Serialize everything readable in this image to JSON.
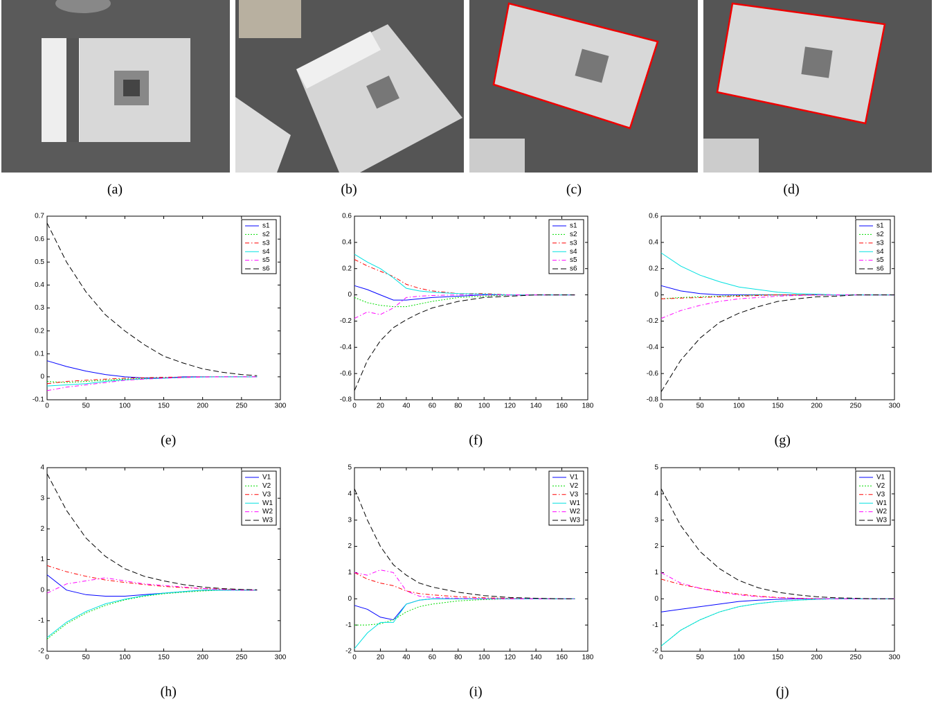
{
  "images": [
    {
      "caption": "(a)"
    },
    {
      "caption": "(b)"
    },
    {
      "caption": "(c)"
    },
    {
      "caption": "(d)"
    }
  ],
  "chart_data": [
    {
      "type": "line",
      "caption": "(e)",
      "xlim": [
        0,
        300
      ],
      "xticks": [
        0,
        50,
        100,
        150,
        200,
        250,
        300
      ],
      "ylim": [
        -0.1,
        0.7
      ],
      "yticks": [
        -0.1,
        0,
        0.1,
        0.2,
        0.3,
        0.4,
        0.5,
        0.6,
        0.7
      ],
      "legend": "upper right",
      "x": [
        0,
        25,
        50,
        75,
        100,
        125,
        150,
        175,
        200,
        225,
        250,
        270
      ],
      "series": [
        {
          "name": "s1",
          "color": "#0000ff",
          "dash": "solid",
          "values": [
            0.07,
            0.045,
            0.025,
            0.01,
            0,
            -0.005,
            -0.005,
            0,
            0,
            0,
            0,
            0
          ]
        },
        {
          "name": "s2",
          "color": "#00dd00",
          "dash": "dotted",
          "values": [
            -0.02,
            -0.025,
            -0.02,
            -0.015,
            -0.01,
            -0.007,
            -0.005,
            -0.003,
            0,
            0,
            0,
            0
          ]
        },
        {
          "name": "s3",
          "color": "#ff0000",
          "dash": "dashdot",
          "values": [
            -0.03,
            -0.02,
            -0.015,
            -0.01,
            -0.006,
            -0.004,
            -0.002,
            -0.001,
            0,
            0,
            0,
            0
          ]
        },
        {
          "name": "s4",
          "color": "#00e0e0",
          "dash": "solid",
          "values": [
            -0.04,
            -0.035,
            -0.03,
            -0.02,
            -0.013,
            -0.009,
            -0.006,
            -0.003,
            -0.001,
            0,
            0,
            0
          ]
        },
        {
          "name": "s5",
          "color": "#ff00ff",
          "dash": "dashdot",
          "values": [
            -0.06,
            -0.045,
            -0.035,
            -0.025,
            -0.015,
            -0.01,
            -0.006,
            -0.003,
            -0.001,
            0,
            0,
            0
          ]
        },
        {
          "name": "s6",
          "color": "#000000",
          "dash": "dashed",
          "values": [
            0.67,
            0.5,
            0.37,
            0.27,
            0.2,
            0.14,
            0.09,
            0.06,
            0.035,
            0.02,
            0.01,
            0.005
          ]
        }
      ]
    },
    {
      "type": "line",
      "caption": "(f)",
      "xlim": [
        0,
        180
      ],
      "xticks": [
        0,
        20,
        40,
        60,
        80,
        100,
        120,
        140,
        160,
        180
      ],
      "ylim": [
        -0.8,
        0.6
      ],
      "yticks": [
        -0.8,
        -0.6,
        -0.4,
        -0.2,
        0,
        0.2,
        0.4,
        0.6
      ],
      "legend": "upper right",
      "x": [
        0,
        10,
        20,
        30,
        40,
        50,
        60,
        80,
        100,
        120,
        140,
        160,
        170
      ],
      "series": [
        {
          "name": "s1",
          "color": "#0000ff",
          "dash": "solid",
          "values": [
            0.07,
            0.04,
            0,
            -0.04,
            -0.04,
            -0.03,
            -0.02,
            -0.01,
            0,
            0,
            0,
            0,
            0
          ]
        },
        {
          "name": "s2",
          "color": "#00dd00",
          "dash": "dotted",
          "values": [
            -0.02,
            -0.06,
            -0.08,
            -0.09,
            -0.09,
            -0.07,
            -0.05,
            -0.02,
            -0.01,
            0,
            0,
            0,
            0
          ]
        },
        {
          "name": "s3",
          "color": "#ff0000",
          "dash": "dashdot",
          "values": [
            0.27,
            0.22,
            0.18,
            0.14,
            0.08,
            0.05,
            0.03,
            0.01,
            0.01,
            0,
            0,
            0,
            0
          ]
        },
        {
          "name": "s4",
          "color": "#00e0e0",
          "dash": "solid",
          "values": [
            0.31,
            0.25,
            0.2,
            0.13,
            0.05,
            0.03,
            0.02,
            0.01,
            0.005,
            0,
            0,
            0,
            0
          ]
        },
        {
          "name": "s5",
          "color": "#ff00ff",
          "dash": "dashdot",
          "values": [
            -0.18,
            -0.13,
            -0.15,
            -0.1,
            -0.02,
            -0.01,
            -0.005,
            0,
            0,
            0,
            0,
            0,
            0
          ]
        },
        {
          "name": "s6",
          "color": "#000000",
          "dash": "dashed",
          "values": [
            -0.73,
            -0.5,
            -0.35,
            -0.25,
            -0.19,
            -0.14,
            -0.1,
            -0.05,
            -0.02,
            -0.01,
            0,
            0,
            0
          ]
        }
      ]
    },
    {
      "type": "line",
      "caption": "(g)",
      "xlim": [
        0,
        300
      ],
      "xticks": [
        0,
        50,
        100,
        150,
        200,
        250,
        300
      ],
      "ylim": [
        -0.8,
        0.6
      ],
      "yticks": [
        -0.8,
        -0.6,
        -0.4,
        -0.2,
        0,
        0.2,
        0.4,
        0.6
      ],
      "legend": "upper right",
      "x": [
        0,
        25,
        50,
        75,
        100,
        125,
        150,
        175,
        200,
        225,
        250,
        275,
        300
      ],
      "series": [
        {
          "name": "s1",
          "color": "#0000ff",
          "dash": "solid",
          "values": [
            0.07,
            0.03,
            0.01,
            0,
            0,
            0,
            0,
            0,
            0,
            0,
            0,
            0,
            0
          ]
        },
        {
          "name": "s2",
          "color": "#00dd00",
          "dash": "dotted",
          "values": [
            -0.03,
            -0.02,
            -0.015,
            -0.01,
            -0.005,
            0,
            0,
            0,
            0,
            0,
            0,
            0,
            0
          ]
        },
        {
          "name": "s3",
          "color": "#ff0000",
          "dash": "dashdot",
          "values": [
            -0.03,
            -0.025,
            -0.02,
            -0.015,
            -0.01,
            -0.005,
            0,
            0,
            0,
            0,
            0,
            0,
            0
          ]
        },
        {
          "name": "s4",
          "color": "#00e0e0",
          "dash": "solid",
          "values": [
            0.32,
            0.22,
            0.15,
            0.1,
            0.06,
            0.04,
            0.02,
            0.01,
            0.005,
            0,
            0,
            0,
            0
          ]
        },
        {
          "name": "s5",
          "color": "#ff00ff",
          "dash": "dashdot",
          "values": [
            -0.18,
            -0.12,
            -0.08,
            -0.05,
            -0.03,
            -0.02,
            -0.01,
            -0.005,
            0,
            0,
            0,
            0,
            0
          ]
        },
        {
          "name": "s6",
          "color": "#000000",
          "dash": "dashed",
          "values": [
            -0.74,
            -0.5,
            -0.33,
            -0.21,
            -0.14,
            -0.09,
            -0.05,
            -0.03,
            -0.015,
            -0.01,
            0,
            0,
            0
          ]
        }
      ]
    },
    {
      "type": "line",
      "caption": "(h)",
      "xlim": [
        0,
        300
      ],
      "xticks": [
        0,
        50,
        100,
        150,
        200,
        250,
        300
      ],
      "ylim": [
        -2,
        4
      ],
      "yticks": [
        -2,
        -1,
        0,
        1,
        2,
        3,
        4
      ],
      "legend": "upper right",
      "x": [
        0,
        25,
        50,
        75,
        100,
        125,
        150,
        175,
        200,
        225,
        250,
        270
      ],
      "series": [
        {
          "name": "V1",
          "color": "#0000ff",
          "dash": "solid",
          "values": [
            0.5,
            0,
            -0.15,
            -0.2,
            -0.2,
            -0.15,
            -0.1,
            -0.05,
            0,
            0,
            0,
            0
          ]
        },
        {
          "name": "V2",
          "color": "#00dd00",
          "dash": "dotted",
          "values": [
            -1.6,
            -1.1,
            -0.75,
            -0.5,
            -0.32,
            -0.2,
            -0.12,
            -0.07,
            -0.03,
            0,
            0,
            0
          ]
        },
        {
          "name": "V3",
          "color": "#ff0000",
          "dash": "dashdot",
          "values": [
            0.8,
            0.6,
            0.45,
            0.33,
            0.25,
            0.18,
            0.12,
            0.08,
            0.05,
            0.03,
            0.01,
            0
          ]
        },
        {
          "name": "W1",
          "color": "#00e0e0",
          "dash": "solid",
          "values": [
            -1.55,
            -1.05,
            -0.7,
            -0.45,
            -0.3,
            -0.18,
            -0.1,
            -0.05,
            0,
            0,
            0,
            0
          ]
        },
        {
          "name": "W2",
          "color": "#ff00ff",
          "dash": "dashdot",
          "values": [
            -0.1,
            0.2,
            0.3,
            0.4,
            0.3,
            0.2,
            0.15,
            0.1,
            0.05,
            0.02,
            0,
            0
          ]
        },
        {
          "name": "W3",
          "color": "#000000",
          "dash": "dashed",
          "values": [
            3.8,
            2.6,
            1.7,
            1.1,
            0.7,
            0.45,
            0.3,
            0.18,
            0.1,
            0.05,
            0.02,
            0.01
          ]
        }
      ]
    },
    {
      "type": "line",
      "caption": "(i)",
      "xlim": [
        0,
        180
      ],
      "xticks": [
        0,
        20,
        40,
        60,
        80,
        100,
        120,
        140,
        160,
        180
      ],
      "ylim": [
        -2,
        5
      ],
      "yticks": [
        -2,
        -1,
        0,
        1,
        2,
        3,
        4,
        5
      ],
      "legend": "upper right",
      "x": [
        0,
        10,
        20,
        30,
        40,
        50,
        60,
        80,
        100,
        120,
        140,
        160,
        170
      ],
      "series": [
        {
          "name": "V1",
          "color": "#0000ff",
          "dash": "solid",
          "values": [
            -0.25,
            -0.4,
            -0.7,
            -0.8,
            -0.2,
            -0.05,
            0,
            0,
            0,
            0,
            0,
            0,
            0
          ]
        },
        {
          "name": "V2",
          "color": "#00dd00",
          "dash": "dotted",
          "values": [
            -1,
            -1,
            -0.95,
            -0.8,
            -0.5,
            -0.3,
            -0.2,
            -0.08,
            -0.03,
            0,
            0,
            0,
            0
          ]
        },
        {
          "name": "V3",
          "color": "#ff0000",
          "dash": "dashdot",
          "values": [
            1,
            0.75,
            0.6,
            0.5,
            0.3,
            0.2,
            0.15,
            0.08,
            0.04,
            0.02,
            0,
            0,
            0
          ]
        },
        {
          "name": "W1",
          "color": "#00e0e0",
          "dash": "solid",
          "values": [
            -1.9,
            -1.3,
            -0.9,
            -0.9,
            -0.2,
            -0.05,
            0,
            0,
            0,
            0,
            0,
            0,
            0
          ]
        },
        {
          "name": "W2",
          "color": "#ff00ff",
          "dash": "dashdot",
          "values": [
            1,
            0.9,
            1.1,
            1,
            0.3,
            0.1,
            0.05,
            0.02,
            0,
            0,
            0,
            0,
            0
          ]
        },
        {
          "name": "W3",
          "color": "#000000",
          "dash": "dashed",
          "values": [
            4.2,
            3,
            2,
            1.3,
            0.9,
            0.6,
            0.45,
            0.25,
            0.12,
            0.05,
            0.02,
            0,
            0
          ]
        }
      ]
    },
    {
      "type": "line",
      "caption": "(j)",
      "xlim": [
        0,
        300
      ],
      "xticks": [
        0,
        50,
        100,
        150,
        200,
        250,
        300
      ],
      "ylim": [
        -2,
        5
      ],
      "yticks": [
        -2,
        -1,
        0,
        1,
        2,
        3,
        4,
        5
      ],
      "legend": "upper right",
      "x": [
        0,
        25,
        50,
        75,
        100,
        125,
        150,
        175,
        200,
        225,
        250,
        275,
        300
      ],
      "series": [
        {
          "name": "V1",
          "color": "#0000ff",
          "dash": "solid",
          "values": [
            -0.5,
            -0.4,
            -0.3,
            -0.2,
            -0.1,
            -0.05,
            -0.02,
            0,
            0,
            0,
            0,
            0,
            0
          ]
        },
        {
          "name": "V2",
          "color": "#00dd00",
          "dash": "dotted",
          "values": [
            -1.8,
            -1.2,
            -0.8,
            -0.5,
            -0.3,
            -0.18,
            -0.1,
            -0.05,
            -0.02,
            0,
            0,
            0,
            0
          ]
        },
        {
          "name": "V3",
          "color": "#ff0000",
          "dash": "dashdot",
          "values": [
            0.75,
            0.55,
            0.4,
            0.28,
            0.18,
            0.1,
            0.05,
            0.02,
            0,
            0,
            0,
            0,
            0
          ]
        },
        {
          "name": "W1",
          "color": "#00e0e0",
          "dash": "solid",
          "values": [
            -1.8,
            -1.2,
            -0.8,
            -0.5,
            -0.3,
            -0.18,
            -0.1,
            -0.05,
            -0.02,
            0,
            0,
            0,
            0
          ]
        },
        {
          "name": "W2",
          "color": "#ff00ff",
          "dash": "dashdot",
          "values": [
            1,
            0.6,
            0.4,
            0.25,
            0.15,
            0.08,
            0.04,
            0.02,
            0,
            0,
            0,
            0,
            0
          ]
        },
        {
          "name": "W3",
          "color": "#000000",
          "dash": "dashed",
          "values": [
            4.2,
            2.8,
            1.8,
            1.15,
            0.7,
            0.42,
            0.25,
            0.15,
            0.08,
            0.04,
            0.02,
            0,
            0
          ]
        }
      ]
    }
  ]
}
